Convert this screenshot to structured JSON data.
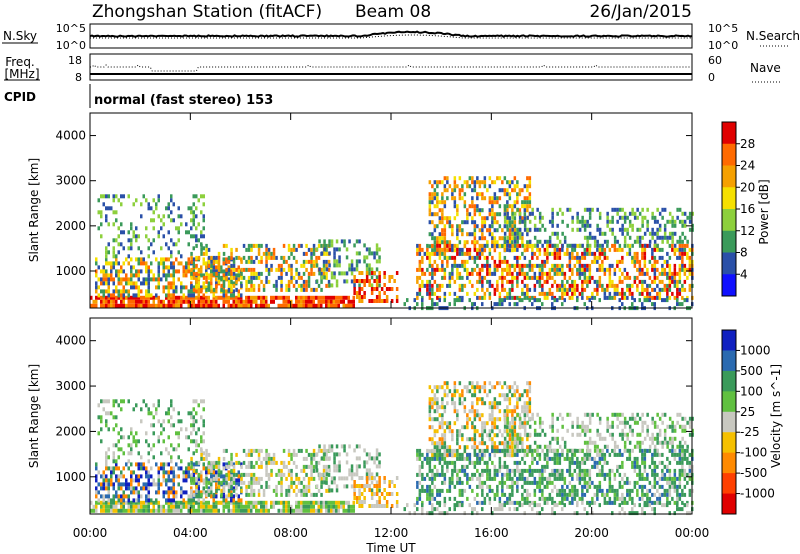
{
  "header": {
    "title": "Zhongshan Station (fitACF)",
    "beam": "Beam 08",
    "date": "26/Jan/2015"
  },
  "top_panels": {
    "nsky_label": "N.Sky",
    "nsky_ticks": [
      "10^5",
      "10^0"
    ],
    "nsearch_label": "N.Search",
    "nsearch_ticks": [
      "10^5",
      "10^0"
    ],
    "freq_label_1": "Freq.",
    "freq_label_2": "[MHz]",
    "freq_ticks": [
      "18",
      "8"
    ],
    "nave_label": "Nave",
    "nave_ticks": [
      "60",
      "0"
    ],
    "cpid_label": "CPID",
    "cpid_text": "normal (fast stereo) 153"
  },
  "chart_data": [
    {
      "type": "heatmap",
      "title": "",
      "ylabel": "Slant Range [km]",
      "xlabel": "",
      "ylim": [
        180,
        4500
      ],
      "yticks": [
        "1000",
        "2000",
        "3000",
        "4000"
      ],
      "colorbar_label": "Power [dB]",
      "colorbar_ticks": [
        "28",
        "24",
        "20",
        "16",
        "12",
        "8",
        "4"
      ],
      "colorbar_colors": [
        "#e00000",
        "#ff6a00",
        "#f5a000",
        "#f5e000",
        "#8dd03c",
        "#3a9a5a",
        "#2a50a8",
        "#1010ff"
      ]
    },
    {
      "type": "heatmap",
      "title": "",
      "ylabel": "Slant Range [km]",
      "xlabel": "Time UT",
      "ylim": [
        180,
        4500
      ],
      "xlim": [
        "00:00",
        "24:00"
      ],
      "yticks": [
        "1000",
        "2000",
        "3000",
        "4000"
      ],
      "xticks": [
        "00:00",
        "04:00",
        "08:00",
        "12:00",
        "16:00",
        "20:00",
        "00:00"
      ],
      "colorbar_label": "Velocity [m s^-1]",
      "colorbar_ticks": [
        "1000",
        "500",
        "100",
        "25",
        "-25",
        "-100",
        "-500",
        "-1000"
      ],
      "colorbar_colors": [
        "#1020c0",
        "#2a6ab0",
        "#3a9a5a",
        "#60c040",
        "#c8c8c0",
        "#f5c000",
        "#ff8a00",
        "#ff4000",
        "#e00000"
      ]
    }
  ]
}
